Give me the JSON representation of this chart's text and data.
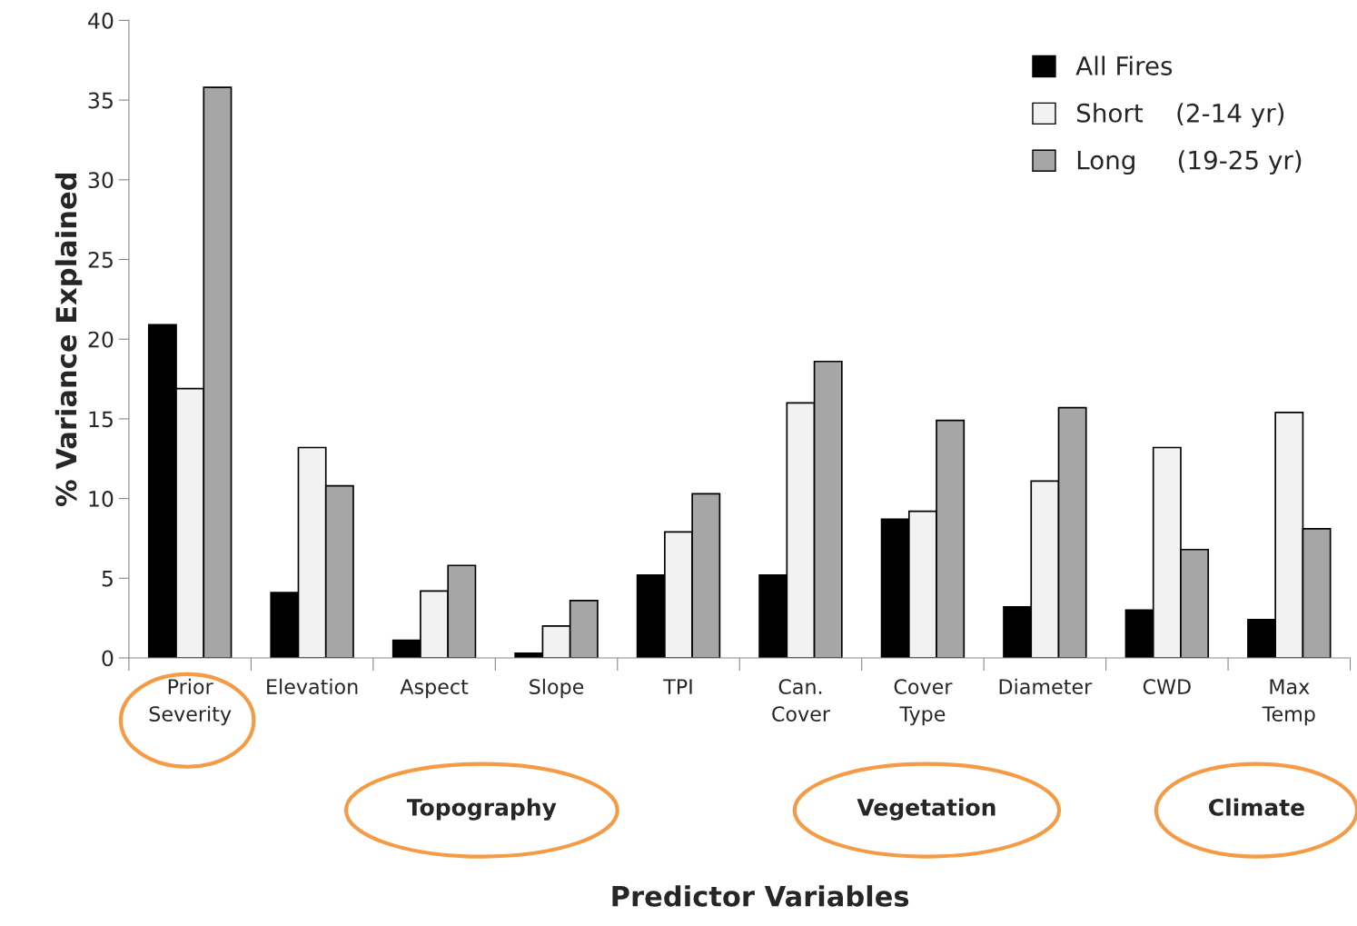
{
  "chart_data": {
    "type": "bar",
    "ylabel": "% Variance Explained",
    "categories": [
      "Prior\nSeverity",
      "Elevation",
      "Aspect",
      "Slope",
      "TPI",
      "Can.\nCover",
      "Cover\nType",
      "Diameter",
      "CWD",
      "Max\nTemp"
    ],
    "series": [
      {
        "name": "All Fires",
        "color": "#000000",
        "values": [
          20.9,
          4.1,
          1.1,
          0.3,
          5.2,
          5.2,
          8.7,
          3.2,
          3.0,
          2.4
        ]
      },
      {
        "name": "Short    (2-14 yr)",
        "color": "#f2f2f2",
        "values": [
          16.9,
          13.2,
          4.2,
          2.0,
          7.9,
          16.0,
          9.2,
          11.1,
          13.2,
          15.4
        ]
      },
      {
        "name": "Long     (19-25 yr)",
        "color": "#a6a6a6",
        "values": [
          35.8,
          10.8,
          5.8,
          3.6,
          10.3,
          18.6,
          14.9,
          15.7,
          6.8,
          8.1
        ]
      }
    ],
    "ylim": [
      0,
      40
    ],
    "yticks": [
      0,
      5,
      10,
      15,
      20,
      25,
      30,
      35,
      40
    ],
    "grid": false,
    "legend": "top right",
    "annotations": [
      "Topography",
      "Vegetation",
      "Climate",
      "Predictor Variables"
    ]
  }
}
